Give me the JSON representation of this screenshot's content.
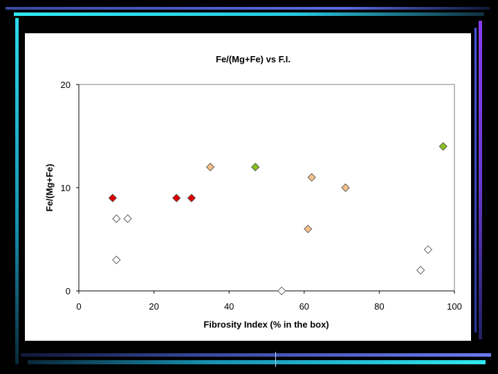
{
  "chart_data": {
    "type": "scatter",
    "title": "Fe/(Mg+Fe) vs F.I.",
    "xlabel": "Fibrosity Index (% in the box)",
    "ylabel": "Fe/(Mg+Fe)",
    "xlim": [
      0,
      100
    ],
    "ylim": [
      0,
      20
    ],
    "x_ticks": [
      "0",
      "20",
      "40",
      "60",
      "80",
      "100"
    ],
    "y_ticks": [
      "0",
      "10",
      "20"
    ],
    "grid": false,
    "legend": "none",
    "marker": "diamond",
    "series": [
      {
        "color": "#e00000",
        "points": [
          {
            "x": 9,
            "y": 9
          },
          {
            "x": 26,
            "y": 9
          },
          {
            "x": 30,
            "y": 9
          }
        ]
      },
      {
        "color": "#ffffff",
        "points": [
          {
            "x": 10,
            "y": 7
          },
          {
            "x": 13,
            "y": 7
          },
          {
            "x": 10,
            "y": 3
          },
          {
            "x": 54,
            "y": 0
          },
          {
            "x": 91,
            "y": 2
          },
          {
            "x": 93,
            "y": 4
          }
        ]
      },
      {
        "color": "#f5c08a",
        "points": [
          {
            "x": 35,
            "y": 12
          },
          {
            "x": 62,
            "y": 11
          },
          {
            "x": 71,
            "y": 10
          },
          {
            "x": 61,
            "y": 6
          }
        ]
      },
      {
        "color": "#88c020",
        "points": [
          {
            "x": 47,
            "y": 12
          },
          {
            "x": 97,
            "y": 14
          }
        ]
      }
    ]
  }
}
